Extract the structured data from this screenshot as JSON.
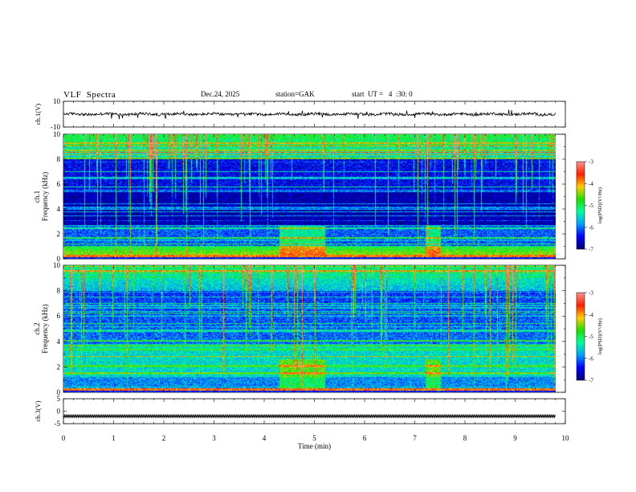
{
  "header": {
    "title": "VLF  Spectra",
    "date": "Dec.24, 2025",
    "station": "station=GAK",
    "start": "start  UT =   4  :30: 0"
  },
  "chart_data": [
    {
      "type": "line",
      "name": "ch1-waveform",
      "ylabel": "ch.1(V)",
      "ylim": [
        -10,
        10
      ],
      "y_tick_labels": [
        "10",
        "-10"
      ],
      "x_range_min": [
        0,
        9.8
      ],
      "description_values": {
        "mean_level_V": 0,
        "typical_range_V": [
          -2,
          2
        ]
      }
    },
    {
      "type": "heatmap",
      "name": "ch1-spectrogram",
      "ylabel_channel": "ch.1",
      "ylabel": "Frequency  (kHz)",
      "ylim": [
        0,
        10
      ],
      "y_tick_labels": [
        "0",
        "2",
        "4",
        "6",
        "8",
        "10"
      ],
      "xlim": [
        0,
        10
      ],
      "data_end_min": 9.8,
      "colorbar": {
        "label": "log(PSD)(V²/Hz)",
        "range": [
          -7,
          -3
        ],
        "tick_labels": [
          "-3",
          "-4",
          "-5",
          "-6",
          "-7"
        ]
      }
    },
    {
      "type": "heatmap",
      "name": "ch2-spectrogram",
      "ylabel_channel": "ch.2",
      "ylabel": "Frequency  (kHz)",
      "ylim": [
        0,
        10
      ],
      "y_tick_labels": [
        "0",
        "2",
        "4",
        "6",
        "8",
        "10"
      ],
      "xlim": [
        0,
        10
      ],
      "data_end_min": 9.8,
      "colorbar": {
        "label": "log(PSD)(V²/Hz)",
        "range": [
          -7,
          -3
        ],
        "tick_labels": [
          "-3",
          "-4",
          "-5",
          "-6",
          "-7"
        ]
      }
    },
    {
      "type": "line",
      "name": "ch3-waveform",
      "ylabel": "ch.3(V)",
      "ylim": [
        -5,
        5
      ],
      "y_tick_labels": [
        "5",
        "0",
        "-5"
      ],
      "constant_level_V": -2,
      "x_range_min": [
        0,
        9.8
      ]
    }
  ],
  "x_axis": {
    "label": "Time  (min)",
    "ticks": [
      0,
      1,
      2,
      3,
      4,
      5,
      6,
      7,
      8,
      9,
      10
    ]
  },
  "colors": {
    "ink": "#000000",
    "colormap": [
      "#00007a",
      "#0000ff",
      "#00a0ff",
      "#00ffa0",
      "#20e000",
      "#ffd000",
      "#ff2000",
      "#ff9090"
    ]
  }
}
